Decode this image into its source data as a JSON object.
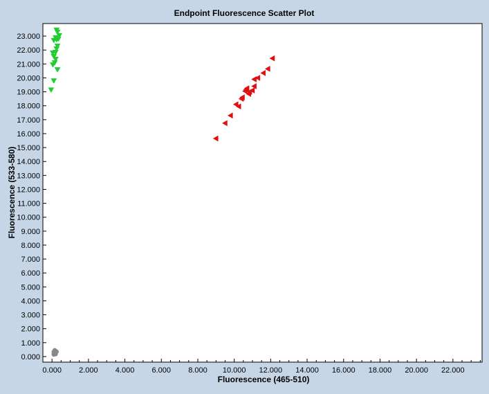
{
  "colors": {
    "background": "#c6d6e6",
    "plot_area": "#ffffff",
    "series": [
      "#dd1111",
      "#22cc33",
      "#888888"
    ]
  },
  "chart_data": {
    "type": "scatter",
    "title": "Endpoint Fluorescence Scatter Plot",
    "xlabel": "Fluorescence (465-510)",
    "ylabel": "Fluorescence (533-580)",
    "xlim": [
      -0.5,
      23.6
    ],
    "ylim": [
      -0.4,
      23.9
    ],
    "x_ticks": [
      0,
      2,
      4,
      6,
      8,
      10,
      12,
      14,
      16,
      18,
      20,
      22
    ],
    "x_tick_labels": [
      "0.000",
      "2.000",
      "4.000",
      "6.000",
      "8.000",
      "10.000",
      "12.000",
      "14.000",
      "16.000",
      "18.000",
      "20.000",
      "22.000"
    ],
    "y_ticks": [
      0,
      1,
      2,
      3,
      4,
      5,
      6,
      7,
      8,
      9,
      10,
      11,
      12,
      13,
      14,
      15,
      16,
      17,
      18,
      19,
      20,
      21,
      22,
      23
    ],
    "y_tick_labels": [
      "0.000",
      "1.000",
      "2.000",
      "3.000",
      "4.000",
      "5.000",
      "6.000",
      "7.000",
      "8.000",
      "9.000",
      "10.000",
      "11.000",
      "12.000",
      "13.000",
      "14.000",
      "15.000",
      "16.000",
      "17.000",
      "18.000",
      "19.000",
      "20.000",
      "21.000",
      "22.000",
      "23.000"
    ],
    "grid": false,
    "legend": "none",
    "series": [
      {
        "marker": "triangle-left",
        "color": "#dd1111",
        "points": [
          [
            9.0,
            15.65
          ],
          [
            9.5,
            16.75
          ],
          [
            9.8,
            17.3
          ],
          [
            10.1,
            18.1
          ],
          [
            10.25,
            17.95
          ],
          [
            10.4,
            18.5
          ],
          [
            10.45,
            18.6
          ],
          [
            10.6,
            19.05
          ],
          [
            10.7,
            19.25
          ],
          [
            10.65,
            19.15
          ],
          [
            10.8,
            18.85
          ],
          [
            10.85,
            19.0
          ],
          [
            11.0,
            19.1
          ],
          [
            11.1,
            19.4
          ],
          [
            11.1,
            19.9
          ],
          [
            11.3,
            20.0
          ],
          [
            11.6,
            20.35
          ],
          [
            11.85,
            20.65
          ],
          [
            12.1,
            21.4
          ]
        ]
      },
      {
        "marker": "triangle-down",
        "color": "#22cc33",
        "points": [
          [
            -0.05,
            19.15
          ],
          [
            0.1,
            19.8
          ],
          [
            0.3,
            20.6
          ],
          [
            0.05,
            20.95
          ],
          [
            0.15,
            21.1
          ],
          [
            0.2,
            21.35
          ],
          [
            0.1,
            21.55
          ],
          [
            0.05,
            21.8
          ],
          [
            0.2,
            21.85
          ],
          [
            0.25,
            22.1
          ],
          [
            0.3,
            22.3
          ],
          [
            0.1,
            22.7
          ],
          [
            0.25,
            22.75
          ],
          [
            0.35,
            22.8
          ],
          [
            0.2,
            22.9
          ],
          [
            0.4,
            23.05
          ],
          [
            0.3,
            23.3
          ],
          [
            0.25,
            23.45
          ]
        ]
      },
      {
        "marker": "circle",
        "color": "#888888",
        "points": [
          [
            0.1,
            0.2
          ],
          [
            0.15,
            0.25
          ],
          [
            0.2,
            0.3
          ],
          [
            0.1,
            0.35
          ],
          [
            0.2,
            0.4
          ],
          [
            0.15,
            0.45
          ],
          [
            0.25,
            0.35
          ],
          [
            0.1,
            0.15
          ],
          [
            0.2,
            0.18
          ],
          [
            0.15,
            0.28
          ]
        ]
      }
    ]
  }
}
